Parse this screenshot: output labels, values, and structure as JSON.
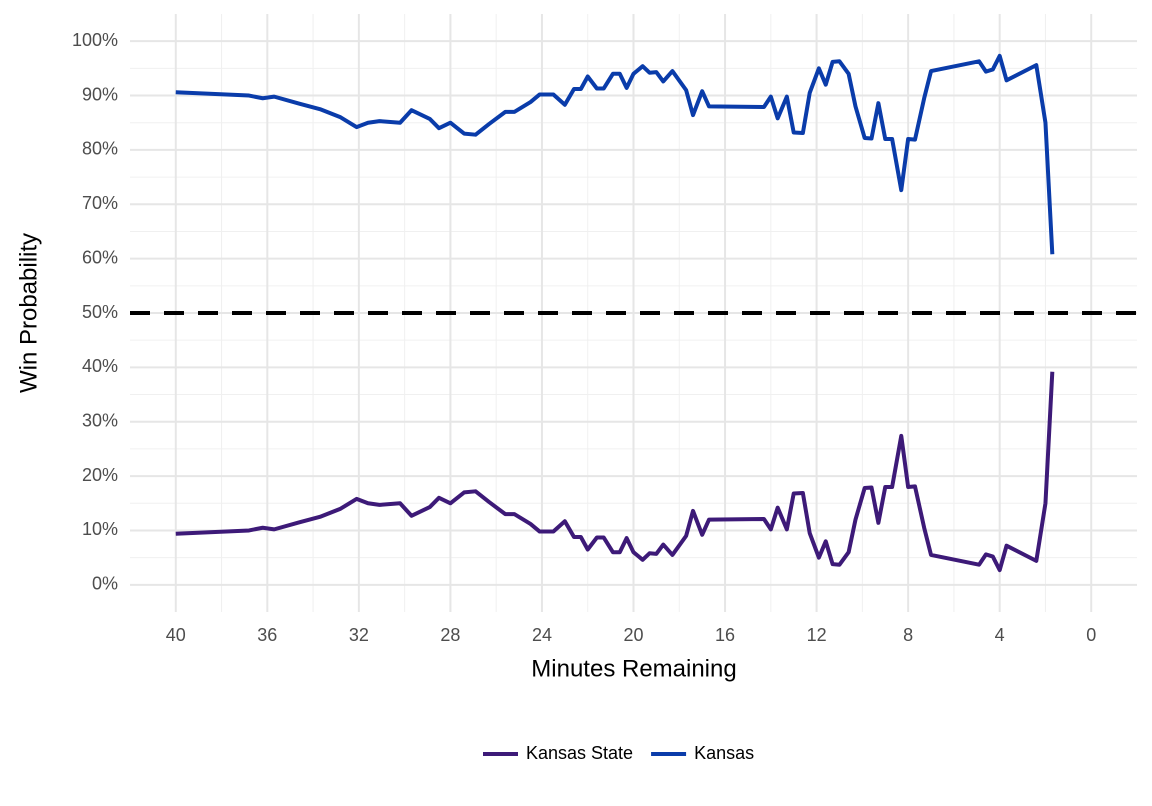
{
  "chart_data": {
    "type": "line",
    "xlabel": "Minutes Remaining",
    "ylabel": "Win Probability",
    "x": [
      40,
      36.8,
      36.2,
      35.7,
      34.6,
      33.7,
      32.8,
      32.1,
      31.6,
      31.1,
      30.2,
      29.7,
      28.9,
      28.5,
      28.0,
      27.4,
      26.9,
      26.3,
      25.6,
      25.2,
      24.5,
      24.1,
      23.5,
      23.0,
      22.6,
      22.3,
      22.0,
      21.6,
      21.3,
      20.9,
      20.6,
      20.3,
      20.0,
      19.6,
      19.3,
      19.0,
      18.7,
      18.3,
      17.7,
      17.4,
      17.0,
      16.7,
      14.3,
      14.0,
      13.7,
      13.3,
      13.0,
      12.6,
      12.3,
      11.9,
      11.6,
      11.3,
      11.0,
      10.6,
      10.3,
      9.9,
      9.6,
      9.3,
      9.0,
      8.7,
      8.3,
      8.0,
      7.7,
      7.3,
      7.0,
      4.9,
      4.6,
      4.3,
      4.0,
      3.7,
      2.4,
      2.0,
      1.7
    ],
    "series": [
      {
        "name": "Kansas State",
        "color": "#3d1a78",
        "values": [
          9.4,
          10,
          10.5,
          10.2,
          11.5,
          12.5,
          14,
          15.8,
          15,
          14.7,
          15,
          12.7,
          14.3,
          16,
          15,
          17,
          17.2,
          15.2,
          13,
          13,
          11.2,
          9.8,
          9.8,
          11.7,
          8.8,
          8.8,
          6.5,
          8.7,
          8.7,
          6,
          6,
          8.6,
          6,
          4.6,
          5.8,
          5.7,
          7.4,
          5.5,
          9,
          13.6,
          9.2,
          12,
          12.1,
          10.2,
          14.2,
          10.2,
          16.8,
          16.9,
          9.5,
          5,
          8,
          3.8,
          3.7,
          6,
          12,
          17.8,
          17.9,
          11.4,
          18,
          18,
          27.4,
          18,
          18.1,
          10.5,
          5.5,
          3.7,
          5.6,
          5.2,
          2.7,
          7.2,
          4.4,
          15,
          39.2
        ]
      },
      {
        "name": "Kansas",
        "color": "#0a3caa",
        "values": [
          90.6,
          90,
          89.5,
          89.8,
          88.5,
          87.5,
          86,
          84.2,
          85,
          85.3,
          85,
          87.3,
          85.7,
          84,
          85,
          83,
          82.8,
          84.8,
          87,
          87,
          88.8,
          90.2,
          90.2,
          88.3,
          91.2,
          91.2,
          93.5,
          91.3,
          91.3,
          94,
          94,
          91.4,
          94,
          95.4,
          94.2,
          94.3,
          92.6,
          94.5,
          91,
          86.4,
          90.8,
          88,
          87.9,
          89.8,
          85.8,
          89.8,
          83.2,
          83.1,
          90.5,
          95,
          92,
          96.2,
          96.3,
          94,
          88,
          82.2,
          82.1,
          88.6,
          82,
          82,
          72.6,
          82,
          81.9,
          89.5,
          94.5,
          96.3,
          94.4,
          94.8,
          97.3,
          92.8,
          95.6,
          85,
          60.8
        ]
      }
    ],
    "xlim": [
      42,
      -2
    ],
    "xticks": [
      40,
      36,
      32,
      28,
      24,
      20,
      16,
      12,
      8,
      4,
      0
    ],
    "ylim": [
      -5,
      105
    ],
    "yticks": [
      {
        "value": 0,
        "label": "0%"
      },
      {
        "value": 10,
        "label": "10%"
      },
      {
        "value": 20,
        "label": "20%"
      },
      {
        "value": 30,
        "label": "30%"
      },
      {
        "value": 40,
        "label": "40%"
      },
      {
        "value": 50,
        "label": "50%"
      },
      {
        "value": 60,
        "label": "60%"
      },
      {
        "value": 70,
        "label": "70%"
      },
      {
        "value": 80,
        "label": "80%"
      },
      {
        "value": 90,
        "label": "90%"
      },
      {
        "value": 100,
        "label": "100%"
      }
    ],
    "hline": 50,
    "grid": true,
    "legend": "bottom"
  }
}
